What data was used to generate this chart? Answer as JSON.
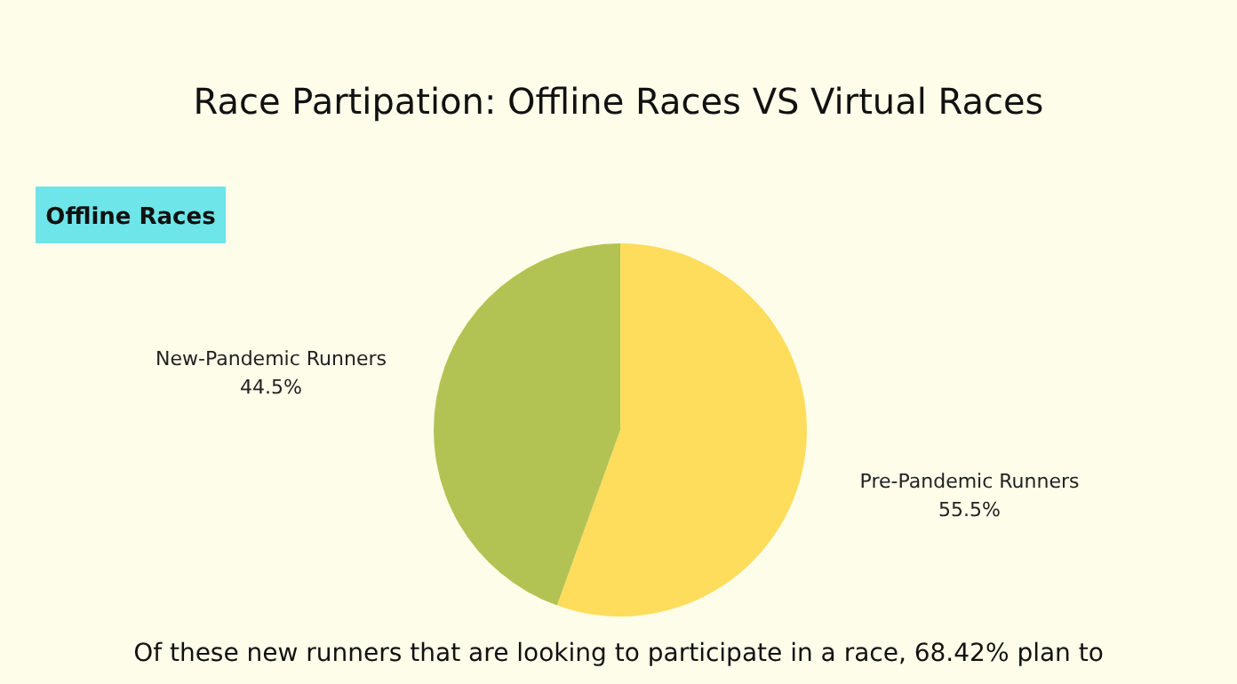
{
  "chart_data": {
    "type": "pie",
    "title": "Race Partipation: Offline Races VS Virtual Races",
    "subtitle": "Offline Races",
    "categories": [
      "Pre-Pandemic Runners",
      "New-Pandemic Runners"
    ],
    "values": [
      55.5,
      44.5
    ],
    "colors": [
      "#fedd5d",
      "#b3c353"
    ],
    "value_labels": [
      "55.5%",
      "44.5%"
    ],
    "legend": false,
    "annotations": [
      "Of these new runners that are looking to participate in a race, 68.42% plan to"
    ]
  }
}
